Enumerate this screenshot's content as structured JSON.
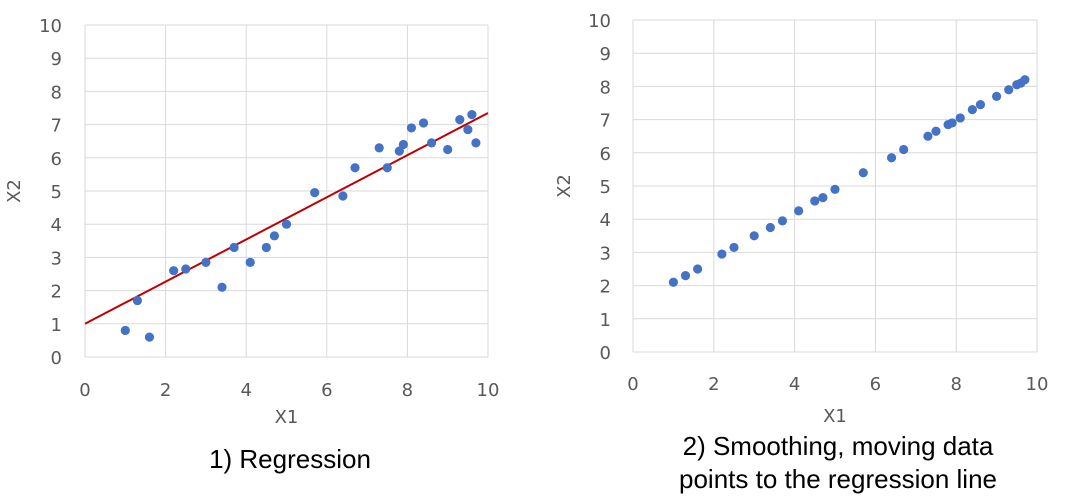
{
  "colors": {
    "points": "#4472C4",
    "regression_line": "#C00000",
    "grid": "#D9D9D9",
    "tick_text": "#595959",
    "caption": "#000000"
  },
  "chart_data": [
    {
      "type": "scatter",
      "title": "",
      "caption": [
        "1) Regression"
      ],
      "xlabel": "X1",
      "ylabel": "X2",
      "xlim": [
        0,
        10
      ],
      "ylim": [
        0,
        10
      ],
      "xticks": [
        0,
        2,
        4,
        6,
        8,
        10
      ],
      "yticks": [
        0,
        1,
        2,
        3,
        4,
        5,
        6,
        7,
        8,
        9,
        10
      ],
      "grid": true,
      "legend": "none",
      "series": [
        {
          "x": [
            1.0,
            1.3,
            1.6,
            2.2,
            2.5,
            3.0,
            3.4,
            3.7,
            4.1,
            4.5,
            4.7,
            5.0,
            5.7,
            6.4,
            6.7,
            7.3,
            7.5,
            7.8,
            7.9,
            8.1,
            8.4,
            8.6,
            9.0,
            9.3,
            9.5,
            9.6,
            9.7
          ],
          "y": [
            0.8,
            1.7,
            0.6,
            2.6,
            2.65,
            2.85,
            2.1,
            3.3,
            2.85,
            3.3,
            3.65,
            4.0,
            4.95,
            4.85,
            5.7,
            6.3,
            5.7,
            6.2,
            6.4,
            6.9,
            7.05,
            6.45,
            6.25,
            7.15,
            6.85,
            7.3,
            6.45
          ]
        }
      ],
      "regression_line": {
        "x": [
          0,
          10
        ],
        "y": [
          1.0,
          7.35
        ]
      }
    },
    {
      "type": "scatter",
      "title": "",
      "caption": [
        "2) Smoothing, moving data",
        "points to the regression line"
      ],
      "xlabel": "X1",
      "ylabel": "X2",
      "xlim": [
        0,
        10
      ],
      "ylim": [
        0,
        10
      ],
      "xticks": [
        0,
        2,
        4,
        6,
        8,
        10
      ],
      "yticks": [
        0,
        1,
        2,
        3,
        4,
        5,
        6,
        7,
        8,
        9,
        10
      ],
      "grid": true,
      "legend": "none",
      "series": [
        {
          "x": [
            1.0,
            1.3,
            1.6,
            2.2,
            2.5,
            3.0,
            3.4,
            3.7,
            4.1,
            4.5,
            4.7,
            5.0,
            5.7,
            6.4,
            6.7,
            7.3,
            7.5,
            7.8,
            7.9,
            8.1,
            8.4,
            8.6,
            9.0,
            9.3,
            9.5,
            9.6,
            9.7
          ],
          "y": [
            2.1,
            2.3,
            2.5,
            2.95,
            3.15,
            3.5,
            3.75,
            3.95,
            4.25,
            4.55,
            4.65,
            4.9,
            5.4,
            5.85,
            6.1,
            6.5,
            6.65,
            6.85,
            6.9,
            7.05,
            7.3,
            7.45,
            7.7,
            7.9,
            8.05,
            8.1,
            8.2
          ]
        }
      ]
    }
  ]
}
